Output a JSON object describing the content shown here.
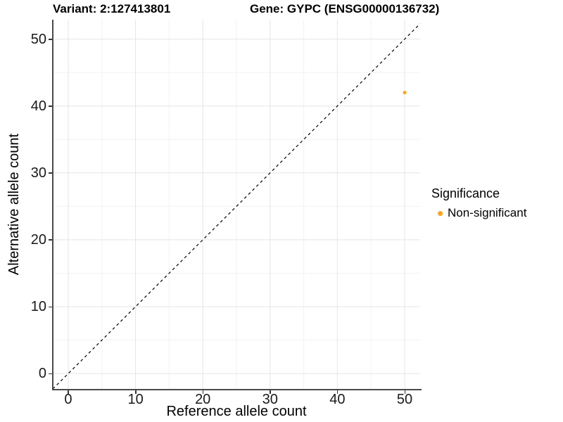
{
  "header": {
    "variant_title": "Variant: 2:127413801",
    "gene_title": "Gene: GYPC (ENSG00000136732)"
  },
  "legend": {
    "title": "Significance",
    "items": [
      {
        "label": "Non-significant",
        "color": "#FFA320",
        "marker": "circle"
      }
    ]
  },
  "chart_data": {
    "type": "scatter",
    "title": "Variant: 2:127413801 — Gene: GYPC (ENSG00000136732)",
    "xlabel": "Reference allele count",
    "ylabel": "Alternative allele count",
    "xlim": [
      -2.3,
      52.3
    ],
    "ylim": [
      -2.3,
      52.9
    ],
    "xticks": [
      0,
      10,
      20,
      30,
      40,
      50
    ],
    "yticks": [
      0,
      10,
      20,
      30,
      40,
      50
    ],
    "minor_xticks": [
      5,
      15,
      25,
      35,
      45
    ],
    "minor_yticks": [
      5,
      15,
      25,
      35,
      45
    ],
    "grid": "on",
    "legend_position": "right",
    "series": [
      {
        "name": "Non-significant",
        "color": "#FFA320",
        "marker_size": 5,
        "points": [
          [
            50,
            42
          ]
        ]
      }
    ],
    "reference_line": {
      "slope": 1,
      "intercept": 0,
      "linetype": "dashed",
      "color": "#000000"
    }
  },
  "colors": {
    "grid_major": "#e5e5e5",
    "grid_minor": "#f2f2f2",
    "axis_line": "#4a4a4a",
    "tick_mark": "#333333",
    "tick_text": "#1a1a1a"
  }
}
